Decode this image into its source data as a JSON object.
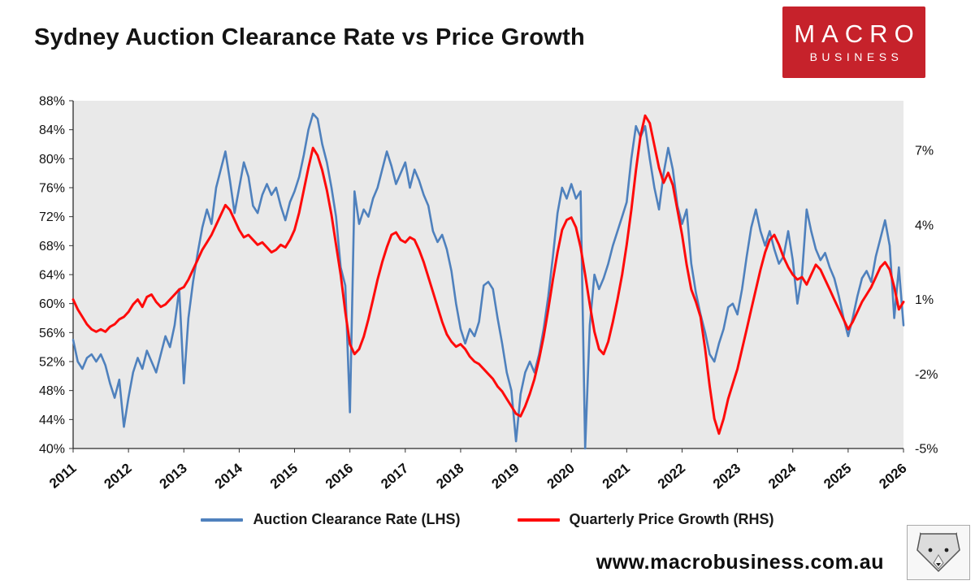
{
  "title": "Sydney Auction Clearance Rate vs Price Growth",
  "logo": {
    "line1": "MACRO",
    "line2": "BUSINESS",
    "bg_color": "#c6222b"
  },
  "footer": {
    "website": "www.macrobusiness.com.au"
  },
  "chart_data": {
    "type": "line",
    "title": "Sydney Auction Clearance Rate vs Price Growth",
    "plot_bg": "#e9e9e9",
    "x_start_year": 2011,
    "x_end_year": 2026,
    "x_points_per_year": 12,
    "x_ticks": [
      "2011",
      "2012",
      "2013",
      "2014",
      "2015",
      "2016",
      "2017",
      "2018",
      "2019",
      "2020",
      "2021",
      "2022",
      "2023",
      "2024",
      "2025",
      "2026"
    ],
    "lhs_axis": {
      "min": 40,
      "max": 88,
      "ticks": [
        88,
        84,
        80,
        76,
        72,
        68,
        64,
        60,
        56,
        52,
        48,
        44,
        40
      ],
      "suffix": "%"
    },
    "rhs_axis": {
      "min": -5,
      "max": 9,
      "ticks": [
        7,
        4,
        1,
        -2,
        -5
      ],
      "suffix": "%"
    },
    "series": [
      {
        "name": "Auction Clearance Rate (LHS)",
        "axis": "lhs",
        "color": "#4f81bd",
        "width": 2.6,
        "values": [
          55,
          52,
          51,
          52.5,
          53,
          52,
          53,
          51.5,
          49,
          47,
          49.5,
          43,
          47,
          50.5,
          52.5,
          51,
          53.5,
          52,
          50.5,
          53,
          55.5,
          54,
          57,
          62,
          49,
          58,
          63,
          67,
          70.5,
          73,
          71,
          76,
          78.5,
          81,
          77,
          72.5,
          76,
          79.5,
          77.5,
          73.5,
          72.5,
          75,
          76.5,
          75,
          76,
          73.5,
          71.5,
          74,
          75.5,
          77.5,
          80.5,
          84,
          86.2,
          85.5,
          82,
          79.5,
          76,
          72,
          65,
          62.5,
          45,
          75.5,
          71,
          73,
          72,
          74.5,
          76,
          78.5,
          81,
          79,
          76.5,
          78,
          79.5,
          76,
          78.5,
          77,
          75,
          73.5,
          70,
          68.5,
          69.5,
          67.5,
          64.5,
          60,
          56.5,
          54.5,
          56.5,
          55.5,
          57.5,
          62.5,
          63,
          62,
          58,
          54.5,
          50.5,
          48,
          41,
          47.5,
          50.5,
          52,
          50.5,
          53,
          56.5,
          61,
          66.5,
          72.5,
          76,
          74.5,
          76.5,
          74.5,
          75.5,
          40,
          57,
          64,
          62,
          63.5,
          65.5,
          68,
          70,
          72,
          74,
          80,
          84.5,
          83,
          84.5,
          80,
          76,
          73,
          78,
          81.5,
          78.5,
          73.5,
          71,
          73,
          65.5,
          61.5,
          58.5,
          56,
          53,
          52,
          54.5,
          56.5,
          59.5,
          60,
          58.5,
          62,
          66.5,
          70.5,
          73,
          70,
          68,
          70,
          67.5,
          65.5,
          66.5,
          70,
          66,
          60,
          64,
          73,
          70,
          67.5,
          66,
          67,
          65,
          63.5,
          61,
          58,
          55.5,
          58,
          61,
          63.5,
          64.5,
          63,
          66.5,
          69,
          71.5,
          68,
          58,
          65,
          57
        ]
      },
      {
        "name": "Quarterly Price Growth (RHS)",
        "axis": "rhs",
        "color": "#fe0b0b",
        "width": 3,
        "values": [
          1.0,
          0.6,
          0.3,
          0.0,
          -0.2,
          -0.3,
          -0.2,
          -0.3,
          -0.1,
          0.0,
          0.2,
          0.3,
          0.5,
          0.8,
          1.0,
          0.7,
          1.1,
          1.2,
          0.9,
          0.7,
          0.8,
          1.0,
          1.2,
          1.4,
          1.5,
          1.8,
          2.2,
          2.6,
          3.0,
          3.3,
          3.6,
          4.0,
          4.4,
          4.8,
          4.6,
          4.2,
          3.8,
          3.5,
          3.6,
          3.4,
          3.2,
          3.3,
          3.1,
          2.9,
          3.0,
          3.2,
          3.1,
          3.4,
          3.8,
          4.5,
          5.4,
          6.3,
          7.1,
          6.8,
          6.2,
          5.4,
          4.4,
          3.2,
          2.0,
          0.5,
          -0.8,
          -1.2,
          -1.0,
          -0.5,
          0.2,
          1.0,
          1.8,
          2.5,
          3.1,
          3.6,
          3.7,
          3.4,
          3.3,
          3.5,
          3.4,
          3.0,
          2.5,
          1.9,
          1.3,
          0.7,
          0.1,
          -0.4,
          -0.7,
          -0.9,
          -0.8,
          -1.0,
          -1.3,
          -1.5,
          -1.6,
          -1.8,
          -2.0,
          -2.2,
          -2.5,
          -2.7,
          -3.0,
          -3.3,
          -3.6,
          -3.7,
          -3.3,
          -2.8,
          -2.2,
          -1.4,
          -0.5,
          0.6,
          1.8,
          2.9,
          3.8,
          4.2,
          4.3,
          3.9,
          3.1,
          2.0,
          0.8,
          -0.3,
          -1.0,
          -1.2,
          -0.7,
          0.1,
          1.0,
          2.0,
          3.2,
          4.6,
          6.2,
          7.6,
          8.4,
          8.1,
          7.2,
          6.3,
          5.7,
          6.1,
          5.6,
          4.6,
          3.6,
          2.4,
          1.4,
          0.9,
          0.3,
          -1.0,
          -2.5,
          -3.8,
          -4.4,
          -3.8,
          -3.0,
          -2.4,
          -1.8,
          -1.0,
          -0.2,
          0.6,
          1.4,
          2.2,
          2.9,
          3.4,
          3.6,
          3.2,
          2.7,
          2.3,
          2.0,
          1.8,
          1.9,
          1.6,
          2.0,
          2.4,
          2.2,
          1.8,
          1.4,
          1.0,
          0.6,
          0.2,
          -0.2,
          0.1,
          0.5,
          0.9,
          1.2,
          1.5,
          1.9,
          2.3,
          2.5,
          2.2,
          1.5,
          0.6,
          0.9
        ]
      }
    ]
  }
}
